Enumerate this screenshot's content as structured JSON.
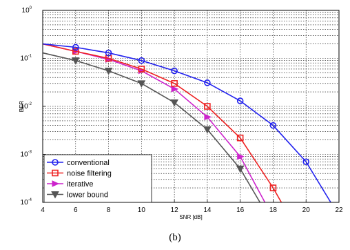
{
  "caption": "(b)",
  "chart_data": {
    "type": "line",
    "title": "",
    "xlabel": "SNR [dB]",
    "ylabel": "BER",
    "xlim": [
      4,
      22
    ],
    "ylim": [
      0.0001,
      1
    ],
    "yscale": "log",
    "grid": true,
    "legend_position": "bottom-left",
    "x_ticks": [
      4,
      6,
      8,
      10,
      12,
      14,
      16,
      18,
      20,
      22
    ],
    "y_ticks": [
      {
        "value": 0.0001,
        "base": "10",
        "exp": "-4"
      },
      {
        "value": 0.001,
        "base": "10",
        "exp": "-3"
      },
      {
        "value": 0.01,
        "base": "10",
        "exp": "-2"
      },
      {
        "value": 0.1,
        "base": "10",
        "exp": "-1"
      },
      {
        "value": 1,
        "base": "10",
        "exp": "0"
      }
    ],
    "series": [
      {
        "name": "conventional",
        "color": "#2222ee",
        "marker": "circle",
        "x": [
          4,
          6,
          8,
          10,
          12,
          14,
          16,
          18,
          20,
          21.5
        ],
        "y": [
          0.2,
          0.17,
          0.13,
          0.09,
          0.055,
          0.031,
          0.013,
          0.004,
          0.0007,
          0.0001
        ],
        "marker_x": [
          6,
          8,
          10,
          12,
          14,
          16,
          18,
          20
        ]
      },
      {
        "name": "noise filtering",
        "color": "#ee2222",
        "marker": "square",
        "x": [
          4,
          6,
          8,
          10,
          12,
          14,
          16,
          18,
          18.5
        ],
        "y": [
          0.2,
          0.14,
          0.1,
          0.06,
          0.03,
          0.01,
          0.0022,
          0.0002,
          0.0001
        ],
        "marker_x": [
          6,
          8,
          10,
          12,
          14,
          16,
          18
        ]
      },
      {
        "name": "iterative",
        "color": "#cc22cc",
        "marker": "triangle-right",
        "x": [
          4,
          6,
          8,
          10,
          12,
          14,
          16,
          17.5
        ],
        "y": [
          0.2,
          0.14,
          0.095,
          0.055,
          0.023,
          0.006,
          0.0009,
          0.0001
        ],
        "marker_x": [
          6,
          8,
          10,
          12,
          14,
          16
        ]
      },
      {
        "name": "lower bound",
        "color": "#555555",
        "marker": "triangle-down",
        "x": [
          4,
          6,
          8,
          10,
          12,
          14,
          16,
          17.2
        ],
        "y": [
          0.13,
          0.09,
          0.055,
          0.03,
          0.012,
          0.0033,
          0.0005,
          0.0001
        ],
        "marker_x": [
          6,
          8,
          10,
          12,
          14,
          16
        ]
      }
    ]
  }
}
